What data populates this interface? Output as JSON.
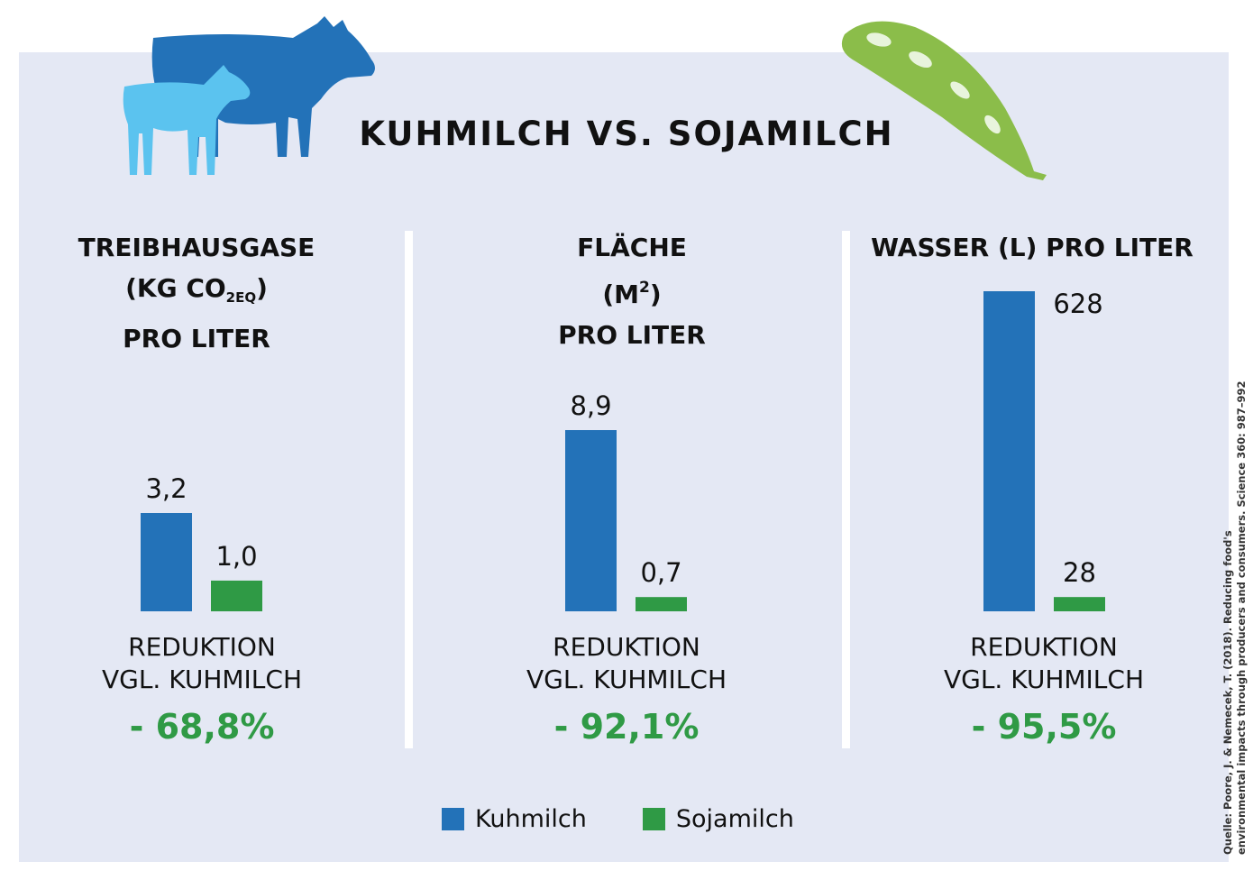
{
  "title": "KUHMILCH VS. SOJAMILCH",
  "colors": {
    "kuhmilch": "#2372b8",
    "sojamilch": "#2f9a45",
    "panel": "#e4e8f4",
    "reduction": "#2f9a45"
  },
  "illustrations": {
    "left": "cow-and-calf-silhouette",
    "right": "soybean-pod"
  },
  "charts": [
    {
      "heading_parts": [
        "TREIBHAUSGASE",
        "(KG CO",
        "2EQ",
        ")",
        "PRO LITER"
      ],
      "reduction_line1": "REDUKTION",
      "reduction_line2": "VGL. KUHMILCH",
      "reduction_value": "- 68,8%"
    },
    {
      "heading_parts": [
        "FLÄCHE",
        "(M",
        "2",
        ")",
        "PRO LITER"
      ],
      "reduction_line1": "REDUKTION",
      "reduction_line2": "VGL. KUHMILCH",
      "reduction_value": "- 92,1%"
    },
    {
      "heading_parts": [
        "WASSER (L) PRO LITER"
      ],
      "reduction_line1": "REDUKTION",
      "reduction_line2": "VGL. KUHMILCH",
      "reduction_value": "- 95,5%"
    }
  ],
  "chart_data": [
    {
      "type": "bar",
      "title": "TREIBHAUSGASE (KG CO2EQ) PRO LITER",
      "categories": [
        "Kuhmilch",
        "Sojamilch"
      ],
      "values": [
        3.2,
        1.0
      ],
      "value_labels": [
        "3,2",
        "1,0"
      ],
      "legend": "bottom-center",
      "grid": false
    },
    {
      "type": "bar",
      "title": "FLÄCHE (M²) PRO LITER",
      "categories": [
        "Kuhmilch",
        "Sojamilch"
      ],
      "values": [
        8.9,
        0.7
      ],
      "value_labels": [
        "8,9",
        "0,7"
      ],
      "legend": "bottom-center",
      "grid": false
    },
    {
      "type": "bar",
      "title": "WASSER (L) PRO LITER",
      "categories": [
        "Kuhmilch",
        "Sojamilch"
      ],
      "values": [
        628,
        28
      ],
      "value_labels": [
        "628",
        "28"
      ],
      "legend": "bottom-center",
      "grid": false
    }
  ],
  "legend": {
    "items": [
      "Kuhmilch",
      "Sojamilch"
    ]
  },
  "source": {
    "line1": "Quelle: Poore, J. & Nemecek, T. (2018).  Reducing food's",
    "line2": "environmental impacts through producers and consumers. Science 360: 987–992"
  }
}
